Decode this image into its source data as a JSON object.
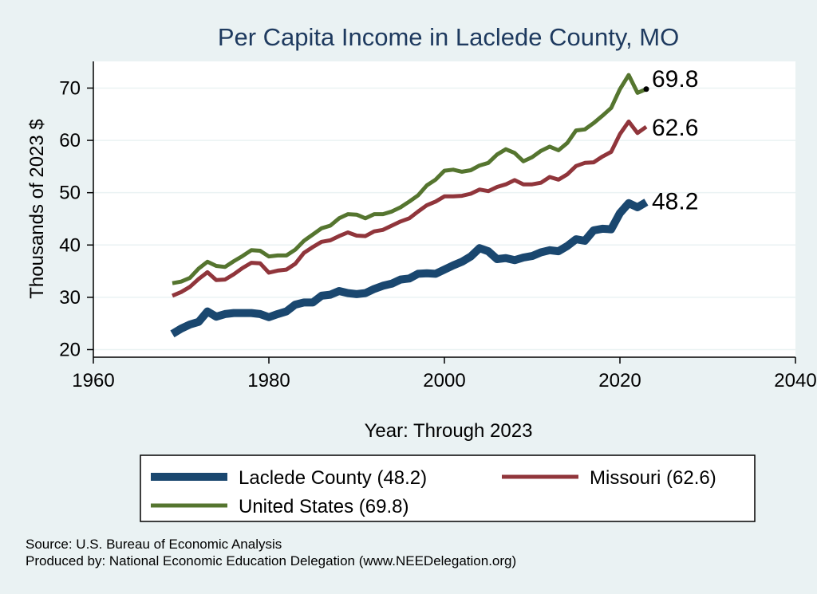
{
  "chart_data": {
    "type": "line",
    "title": "Per Capita Income in Laclede County, MO",
    "xlabel": "Year: Through 2023",
    "ylabel": "Thousands of 2023 $",
    "xlim": [
      1960,
      2040
    ],
    "ylim": [
      20,
      75
    ],
    "xticks": [
      1960,
      1980,
      2000,
      2020,
      2040
    ],
    "yticks": [
      20,
      30,
      40,
      50,
      60,
      70
    ],
    "grid": true,
    "legend_position": "bottom",
    "x": [
      1969,
      1970,
      1971,
      1972,
      1973,
      1974,
      1975,
      1976,
      1977,
      1978,
      1979,
      1980,
      1981,
      1982,
      1983,
      1984,
      1985,
      1986,
      1987,
      1988,
      1989,
      1990,
      1991,
      1992,
      1993,
      1994,
      1995,
      1996,
      1997,
      1998,
      1999,
      2000,
      2001,
      2002,
      2003,
      2004,
      2005,
      2006,
      2007,
      2008,
      2009,
      2010,
      2011,
      2012,
      2013,
      2014,
      2015,
      2016,
      2017,
      2018,
      2019,
      2020,
      2021,
      2022,
      2023
    ],
    "series": [
      {
        "name": "Laclede County (48.2)",
        "color": "#1a476f",
        "end_label": "48.2",
        "values": [
          23.0,
          24.0,
          24.8,
          25.3,
          27.3,
          26.3,
          26.8,
          27.0,
          27.0,
          27.0,
          26.8,
          26.2,
          26.8,
          27.3,
          28.6,
          29.0,
          29.0,
          30.3,
          30.5,
          31.2,
          30.8,
          30.6,
          30.8,
          31.6,
          32.2,
          32.6,
          33.4,
          33.6,
          34.5,
          34.6,
          34.5,
          35.3,
          36.1,
          36.8,
          37.8,
          39.4,
          38.8,
          37.3,
          37.5,
          37.1,
          37.6,
          37.9,
          38.6,
          39.0,
          38.8,
          39.8,
          41.1,
          40.8,
          42.8,
          43.1,
          43.0,
          46.1,
          48.0,
          47.2,
          48.2
        ]
      },
      {
        "name": "Missouri (62.6)",
        "color": "#90353b",
        "end_label": "62.6",
        "values": [
          30.3,
          31.0,
          32.0,
          33.5,
          34.8,
          33.3,
          33.4,
          34.4,
          35.6,
          36.6,
          36.5,
          34.7,
          35.1,
          35.3,
          36.4,
          38.5,
          39.6,
          40.6,
          40.9,
          41.7,
          42.4,
          41.8,
          41.7,
          42.6,
          42.9,
          43.7,
          44.5,
          45.1,
          46.4,
          47.6,
          48.3,
          49.3,
          49.3,
          49.4,
          49.8,
          50.6,
          50.3,
          51.1,
          51.6,
          52.4,
          51.6,
          51.6,
          51.9,
          53.0,
          52.5,
          53.5,
          55.1,
          55.7,
          55.8,
          56.9,
          57.8,
          61.2,
          63.6,
          61.4,
          62.6
        ]
      },
      {
        "name": "United States (69.8)",
        "color": "#55752f",
        "end_label": "69.8",
        "values": [
          32.7,
          33.0,
          33.7,
          35.5,
          36.8,
          36.0,
          35.8,
          36.9,
          37.9,
          39.0,
          38.9,
          37.8,
          38.0,
          38.0,
          39.1,
          40.8,
          42.0,
          43.2,
          43.7,
          45.1,
          45.9,
          45.8,
          45.1,
          45.9,
          45.9,
          46.4,
          47.2,
          48.3,
          49.5,
          51.4,
          52.5,
          54.2,
          54.4,
          54.0,
          54.3,
          55.2,
          55.7,
          57.3,
          58.3,
          57.6,
          56.0,
          56.8,
          58.0,
          58.8,
          58.1,
          59.5,
          61.9,
          62.1,
          63.3,
          64.7,
          66.2,
          69.8,
          72.5,
          69.1,
          69.8
        ]
      }
    ],
    "source_line": "Source: U.S. Bureau of Economic Analysis",
    "producer_line": "Produced by: National Economic Education Delegation (www.NEEDelegation.org)"
  }
}
